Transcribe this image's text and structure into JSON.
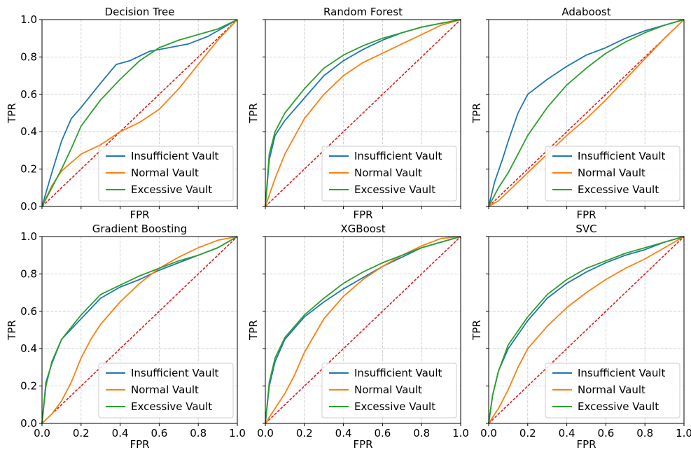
{
  "figure": {
    "x_label": "FPR",
    "y_label": "TPR",
    "tick_labels": [
      "0.0",
      "0.2",
      "0.4",
      "0.6",
      "0.8",
      "1.0"
    ]
  },
  "colors": {
    "insufficient": "#1f77b4",
    "normal": "#ff7f0e",
    "excessive": "#2ca02c",
    "chance": "#e31a1c",
    "grid": "#c8c8c8"
  },
  "chart_data": [
    {
      "type": "line",
      "title": "Decision Tree",
      "xlabel": "FPR",
      "ylabel": "TPR",
      "xlim": [
        0,
        1
      ],
      "ylim": [
        0,
        1
      ],
      "grid": true,
      "legend": "lower-right",
      "series": [
        {
          "name": "Insufficient Vault",
          "x": [
            0,
            0.05,
            0.1,
            0.15,
            0.2,
            0.3,
            0.38,
            0.45,
            0.55,
            0.65,
            0.75,
            0.85,
            1.0
          ],
          "y": [
            0,
            0.18,
            0.35,
            0.47,
            0.53,
            0.66,
            0.76,
            0.78,
            0.83,
            0.85,
            0.87,
            0.91,
            1.0
          ]
        },
        {
          "name": "Normal Vault",
          "x": [
            0,
            0.05,
            0.1,
            0.2,
            0.3,
            0.4,
            0.5,
            0.6,
            0.7,
            0.8,
            0.9,
            1.0
          ],
          "y": [
            0,
            0.11,
            0.19,
            0.28,
            0.33,
            0.4,
            0.45,
            0.52,
            0.63,
            0.76,
            0.89,
            1.0
          ]
        },
        {
          "name": "Excessive Vault",
          "x": [
            0,
            0.05,
            0.1,
            0.15,
            0.2,
            0.3,
            0.4,
            0.5,
            0.6,
            0.7,
            0.8,
            0.9,
            1.0
          ],
          "y": [
            0,
            0.1,
            0.2,
            0.31,
            0.43,
            0.57,
            0.68,
            0.78,
            0.85,
            0.89,
            0.92,
            0.95,
            1.0
          ]
        }
      ],
      "reference": {
        "x": [
          0,
          1
        ],
        "y": [
          0,
          1
        ]
      }
    },
    {
      "type": "line",
      "title": "Random Forest",
      "xlabel": "FPR",
      "ylabel": "TPR",
      "xlim": [
        0,
        1
      ],
      "ylim": [
        0,
        1
      ],
      "grid": true,
      "legend": "lower-right",
      "series": [
        {
          "name": "Insufficient Vault",
          "x": [
            0,
            0.02,
            0.05,
            0.1,
            0.2,
            0.3,
            0.4,
            0.5,
            0.6,
            0.7,
            0.8,
            0.9,
            1.0
          ],
          "y": [
            0,
            0.25,
            0.38,
            0.46,
            0.58,
            0.7,
            0.78,
            0.84,
            0.89,
            0.93,
            0.96,
            0.98,
            1.0
          ]
        },
        {
          "name": "Normal Vault",
          "x": [
            0,
            0.05,
            0.1,
            0.2,
            0.3,
            0.4,
            0.5,
            0.6,
            0.7,
            0.8,
            0.9,
            1.0
          ],
          "y": [
            0,
            0.15,
            0.28,
            0.47,
            0.6,
            0.7,
            0.77,
            0.82,
            0.87,
            0.92,
            0.97,
            1.0
          ]
        },
        {
          "name": "Excessive Vault",
          "x": [
            0,
            0.02,
            0.05,
            0.1,
            0.2,
            0.3,
            0.4,
            0.5,
            0.6,
            0.7,
            0.8,
            0.9,
            1.0
          ],
          "y": [
            0,
            0.28,
            0.4,
            0.5,
            0.63,
            0.74,
            0.81,
            0.86,
            0.9,
            0.93,
            0.96,
            0.98,
            1.0
          ]
        }
      ],
      "reference": {
        "x": [
          0,
          1
        ],
        "y": [
          0,
          1
        ]
      }
    },
    {
      "type": "line",
      "title": "Adaboost",
      "xlabel": "FPR",
      "ylabel": "TPR",
      "xlim": [
        0,
        1
      ],
      "ylim": [
        0,
        1
      ],
      "grid": true,
      "legend": "lower-right",
      "series": [
        {
          "name": "Insufficient Vault",
          "x": [
            0,
            0.03,
            0.07,
            0.1,
            0.15,
            0.2,
            0.3,
            0.4,
            0.5,
            0.6,
            0.7,
            0.8,
            0.9,
            1.0
          ],
          "y": [
            0,
            0.13,
            0.25,
            0.35,
            0.5,
            0.6,
            0.68,
            0.75,
            0.81,
            0.85,
            0.9,
            0.94,
            0.97,
            1.0
          ]
        },
        {
          "name": "Normal Vault",
          "x": [
            0,
            0.05,
            0.1,
            0.2,
            0.3,
            0.4,
            0.5,
            0.6,
            0.7,
            0.8,
            0.9,
            1.0
          ],
          "y": [
            0,
            0.03,
            0.08,
            0.18,
            0.28,
            0.38,
            0.47,
            0.57,
            0.68,
            0.79,
            0.9,
            1.0
          ]
        },
        {
          "name": "Excessive Vault",
          "x": [
            0,
            0.05,
            0.1,
            0.15,
            0.2,
            0.3,
            0.4,
            0.5,
            0.6,
            0.7,
            0.8,
            0.9,
            1.0
          ],
          "y": [
            0,
            0.1,
            0.18,
            0.28,
            0.38,
            0.53,
            0.65,
            0.74,
            0.82,
            0.88,
            0.93,
            0.97,
            1.0
          ]
        }
      ],
      "reference": {
        "x": [
          0,
          1
        ],
        "y": [
          0,
          1
        ]
      }
    },
    {
      "type": "line",
      "title": "Gradient Boosting",
      "xlabel": "FPR",
      "ylabel": "TPR",
      "xlim": [
        0,
        1
      ],
      "ylim": [
        0,
        1
      ],
      "grid": true,
      "legend": "lower-right",
      "series": [
        {
          "name": "Insufficient Vault",
          "x": [
            0,
            0.02,
            0.05,
            0.1,
            0.2,
            0.3,
            0.4,
            0.5,
            0.6,
            0.7,
            0.8,
            0.9,
            1.0
          ],
          "y": [
            0,
            0.22,
            0.32,
            0.45,
            0.56,
            0.67,
            0.73,
            0.77,
            0.82,
            0.86,
            0.9,
            0.94,
            1.0
          ]
        },
        {
          "name": "Normal Vault",
          "x": [
            0,
            0.05,
            0.1,
            0.15,
            0.2,
            0.25,
            0.3,
            0.4,
            0.5,
            0.6,
            0.7,
            0.8,
            0.9,
            1.0
          ],
          "y": [
            0,
            0.05,
            0.12,
            0.22,
            0.35,
            0.45,
            0.53,
            0.65,
            0.75,
            0.83,
            0.89,
            0.94,
            0.98,
            1.0
          ]
        },
        {
          "name": "Excessive Vault",
          "x": [
            0,
            0.02,
            0.05,
            0.1,
            0.2,
            0.3,
            0.4,
            0.5,
            0.6,
            0.7,
            0.8,
            0.9,
            1.0
          ],
          "y": [
            0,
            0.2,
            0.33,
            0.45,
            0.58,
            0.69,
            0.74,
            0.79,
            0.83,
            0.87,
            0.9,
            0.94,
            1.0
          ]
        }
      ],
      "reference": {
        "x": [
          0,
          1
        ],
        "y": [
          0,
          1
        ]
      }
    },
    {
      "type": "line",
      "title": "XGBoost",
      "xlabel": "FPR",
      "ylabel": "TPR",
      "xlim": [
        0,
        1
      ],
      "ylim": [
        0,
        1
      ],
      "grid": true,
      "legend": "lower-right",
      "series": [
        {
          "name": "Insufficient Vault",
          "x": [
            0,
            0.02,
            0.05,
            0.1,
            0.2,
            0.3,
            0.4,
            0.5,
            0.6,
            0.7,
            0.8,
            0.9,
            1.0
          ],
          "y": [
            0,
            0.2,
            0.33,
            0.45,
            0.57,
            0.65,
            0.72,
            0.78,
            0.84,
            0.89,
            0.94,
            0.97,
            1.0
          ]
        },
        {
          "name": "Normal Vault",
          "x": [
            0,
            0.05,
            0.1,
            0.15,
            0.2,
            0.25,
            0.3,
            0.4,
            0.5,
            0.6,
            0.7,
            0.8,
            0.9,
            1.0
          ],
          "y": [
            0,
            0.08,
            0.16,
            0.26,
            0.38,
            0.47,
            0.56,
            0.68,
            0.77,
            0.84,
            0.9,
            0.95,
            0.99,
            1.0
          ]
        },
        {
          "name": "Excessive Vault",
          "x": [
            0,
            0.02,
            0.05,
            0.1,
            0.2,
            0.3,
            0.4,
            0.5,
            0.6,
            0.7,
            0.8,
            0.9,
            1.0
          ],
          "y": [
            0,
            0.22,
            0.35,
            0.46,
            0.58,
            0.67,
            0.75,
            0.81,
            0.86,
            0.9,
            0.94,
            0.97,
            1.0
          ]
        }
      ],
      "reference": {
        "x": [
          0,
          1
        ],
        "y": [
          0,
          1
        ]
      }
    },
    {
      "type": "line",
      "title": "SVC",
      "xlabel": "FPR",
      "ylabel": "TPR",
      "xlim": [
        0,
        1
      ],
      "ylim": [
        0,
        1
      ],
      "grid": true,
      "legend": "lower-right",
      "series": [
        {
          "name": "Insufficient Vault",
          "x": [
            0,
            0.02,
            0.05,
            0.1,
            0.2,
            0.3,
            0.4,
            0.5,
            0.6,
            0.7,
            0.8,
            0.9,
            1.0
          ],
          "y": [
            0,
            0.15,
            0.28,
            0.4,
            0.55,
            0.67,
            0.75,
            0.81,
            0.86,
            0.9,
            0.93,
            0.97,
            1.0
          ]
        },
        {
          "name": "Normal Vault",
          "x": [
            0,
            0.05,
            0.1,
            0.15,
            0.2,
            0.3,
            0.4,
            0.5,
            0.6,
            0.7,
            0.8,
            0.9,
            1.0
          ],
          "y": [
            0,
            0.08,
            0.18,
            0.3,
            0.4,
            0.52,
            0.62,
            0.7,
            0.77,
            0.83,
            0.88,
            0.94,
            1.0
          ]
        },
        {
          "name": "Excessive Vault",
          "x": [
            0,
            0.02,
            0.05,
            0.1,
            0.2,
            0.3,
            0.4,
            0.5,
            0.6,
            0.7,
            0.8,
            0.9,
            1.0
          ],
          "y": [
            0,
            0.15,
            0.28,
            0.42,
            0.57,
            0.69,
            0.77,
            0.83,
            0.87,
            0.91,
            0.94,
            0.97,
            1.0
          ]
        }
      ],
      "reference": {
        "x": [
          0,
          1
        ],
        "y": [
          0,
          1
        ]
      }
    }
  ]
}
